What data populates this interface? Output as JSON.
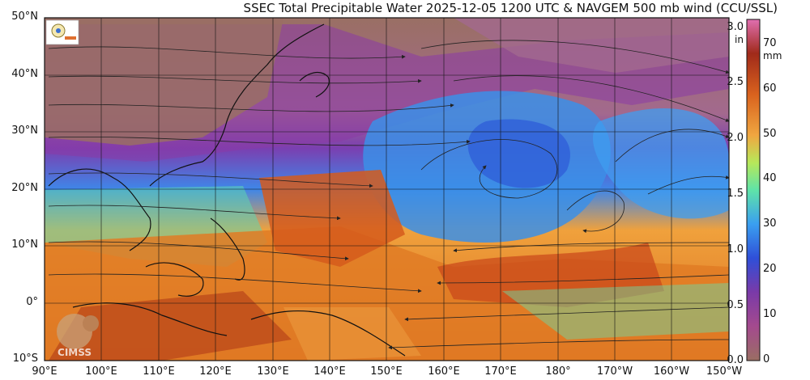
{
  "title": "SSEC Total Precipitable Water  2025-12-05 1200 UTC & NAVGEM 500 mb wind (CCU/SSL)",
  "map": {
    "lat_labels": [
      "50°N",
      "40°N",
      "30°N",
      "20°N",
      "10°N",
      "0°",
      "10°S"
    ],
    "lat_values": [
      50,
      40,
      30,
      20,
      10,
      0,
      -10
    ],
    "lon_labels": [
      "90°E",
      "100°E",
      "110°E",
      "120°E",
      "130°E",
      "140°E",
      "150°E",
      "160°E",
      "170°E",
      "180°",
      "170°W",
      "160°W",
      "150°W"
    ],
    "lon_values": [
      90,
      100,
      110,
      120,
      130,
      140,
      150,
      160,
      170,
      180,
      190,
      200,
      210
    ],
    "logo_text": "CIMSS"
  },
  "colorbar": {
    "inch_unit": "in",
    "mm_unit": "mm",
    "inch_ticks": [
      "3.0",
      "2.5",
      "2.0",
      "1.5",
      "1.0",
      "0.5",
      "0.0"
    ],
    "inch_values": [
      3.0,
      2.5,
      2.0,
      1.5,
      1.0,
      0.5,
      0.0
    ],
    "mm_ticks": [
      "70",
      "60",
      "50",
      "40",
      "30",
      "20",
      "10",
      "0"
    ],
    "mm_values": [
      70,
      60,
      50,
      40,
      30,
      20,
      10,
      0
    ],
    "colors": [
      "#9a6e63",
      "#a44a8e",
      "#7a3aa8",
      "#2f4fd8",
      "#3a9ff0",
      "#5fe3a8",
      "#b7e85a",
      "#f0a640",
      "#d9621e",
      "#a02a1a",
      "#e06fb0"
    ]
  }
}
